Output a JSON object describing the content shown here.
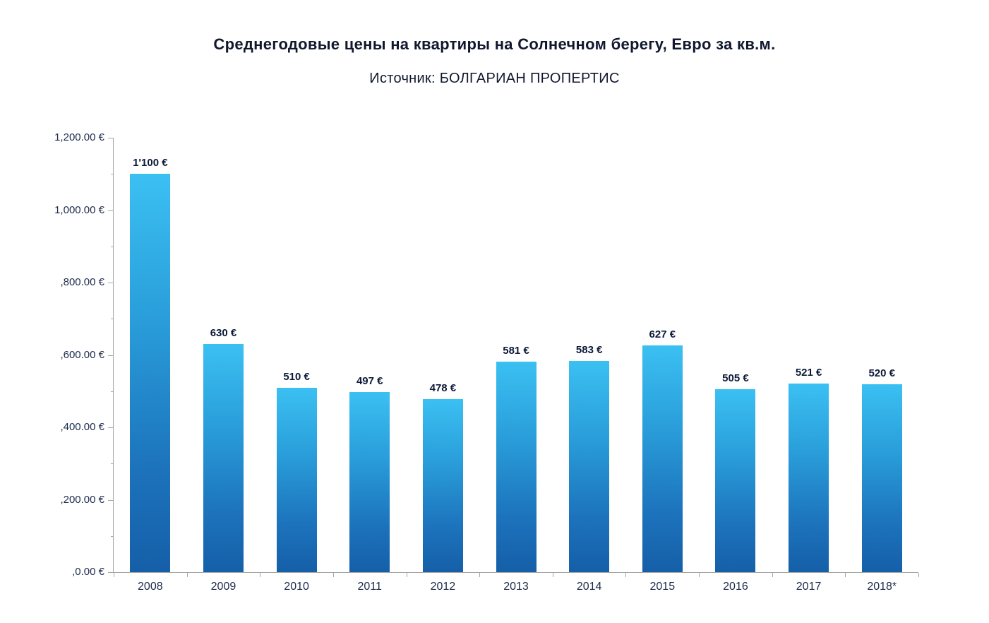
{
  "chart_data": {
    "type": "bar",
    "title": "Среднегодовые цены на квартиры на Солнечном берегу, Евро за кв.м.",
    "subtitle": "Источник: БОЛГАРИАН ПРОПЕРТИС",
    "categories": [
      "2008",
      "2009",
      "2010",
      "2011",
      "2012",
      "2013",
      "2014",
      "2015",
      "2016",
      "2017",
      "2018*"
    ],
    "values": [
      1100,
      630,
      510,
      497,
      478,
      581,
      583,
      627,
      505,
      521,
      520
    ],
    "bar_labels": [
      "1'100 €",
      "630 €",
      "510 €",
      "497 €",
      "478 €",
      "581 €",
      "583 €",
      "627 €",
      "505 €",
      "521 €",
      "520 €"
    ],
    "ylim": [
      0,
      1200
    ],
    "y_major_step": 200,
    "y_minor_step": 100,
    "y_tick_values": [
      1200,
      1000,
      800,
      600,
      400,
      200,
      0
    ],
    "y_tick_labels": [
      "1,200.00 €",
      "1,000.00 €",
      ",800.00 €",
      ",600.00 €",
      ",400.00 €",
      ",200.00 €",
      ",0.00 €"
    ],
    "xlabel": "",
    "ylabel": "",
    "grid": false,
    "legend": "none",
    "colors": {
      "bar_gradient_top": "#3bc0f2",
      "bar_gradient_bottom": "#155fa8",
      "axis": "#a6a6a6",
      "title_text": "#10182e",
      "tick_text": "#1c2b4a",
      "value_label_text": "#0c1a38"
    }
  }
}
